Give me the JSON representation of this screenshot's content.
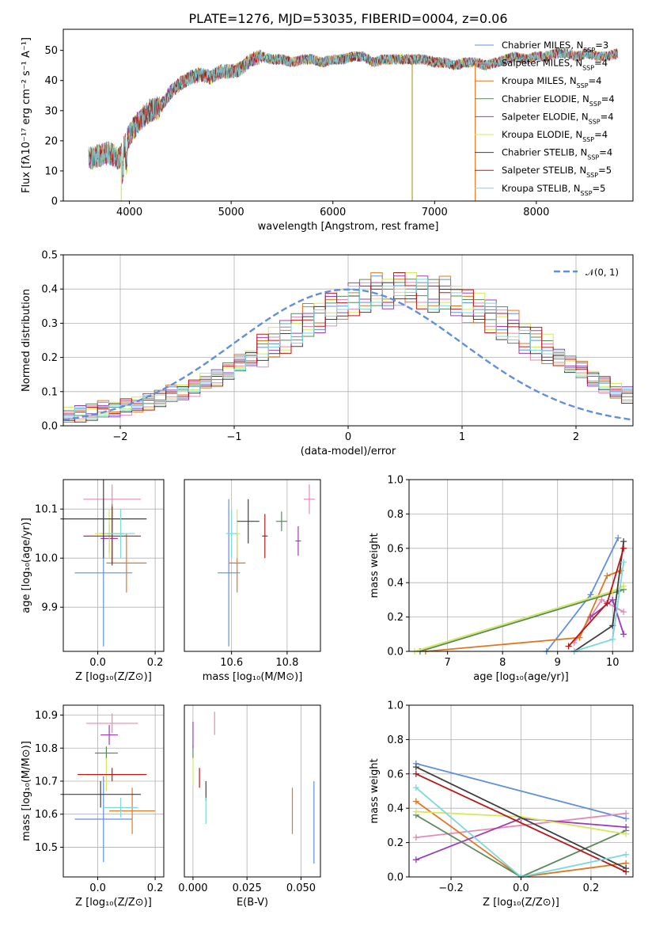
{
  "title": "PLATE=1276, MJD=53035, FIBERID=0004, z=0.06",
  "colors": [
    "#5f8fde",
    "#e48ab5",
    "#e0771f",
    "#5a8a5a",
    "#9c3cb8",
    "#d3e85c",
    "#404040",
    "#b81818",
    "#7ad8de"
  ],
  "chart_data": [
    {
      "id": "spectrum",
      "type": "line",
      "xlabel": "wavelength [Angstrom, rest frame]",
      "ylabel": "Flux [fλ10⁻¹⁷ erg cm⁻² s⁻¹ A⁻¹]",
      "xlim": [
        3350,
        8950
      ],
      "ylim": [
        0,
        57
      ],
      "xticks": [
        4000,
        5000,
        6000,
        7000,
        8000
      ],
      "yticks": [
        0,
        10,
        20,
        30,
        40,
        50
      ],
      "continuum": {
        "x": [
          3600,
          3700,
          3800,
          3900,
          4000,
          4100,
          4200,
          4300,
          4400,
          4500,
          4600,
          4700,
          4800,
          4900,
          5000,
          5100,
          5200,
          5300,
          5400,
          5500,
          5600,
          5700,
          5800,
          5900,
          6000,
          6100,
          6200,
          6300,
          6400,
          6500,
          6600,
          6700,
          6800,
          6900,
          7000,
          7100,
          7200,
          7300,
          7400,
          7500,
          7600,
          7700,
          7800,
          7900,
          8000,
          8100,
          8200,
          8300,
          8400,
          8500,
          8600,
          8700,
          8800
        ],
        "y": [
          14,
          15,
          16,
          14,
          22,
          27,
          30,
          31,
          36,
          39,
          41,
          42,
          41,
          43,
          43,
          44,
          47,
          48,
          47,
          47,
          46,
          47,
          47,
          46,
          47,
          47,
          48,
          48,
          46,
          47,
          47,
          47,
          47,
          47,
          46,
          46,
          45,
          46,
          46,
          45,
          46,
          47,
          48,
          47,
          48,
          48,
          49,
          49,
          48,
          49,
          48,
          48,
          49
        ]
      },
      "models": [
        "Chabrier MILES, N_SSP=3",
        "Salpeter MILES, N_SSP=4",
        "Kroupa MILES, N_SSP=4",
        "Chabrier ELODIE, N_SSP=4",
        "Salpeter ELODIE, N_SSP=4",
        "Kroupa ELODIE, N_SSP=4",
        "Chabrier STELIB, N_SSP=4",
        "Salpeter STELIB, N_SSP=5",
        "Kroupa STELIB, N_SSP=5"
      ]
    },
    {
      "id": "residuals",
      "type": "histogram",
      "xlabel": "(data-model)/error",
      "ylabel": "Normed distribution",
      "xlim": [
        -2.5,
        2.5
      ],
      "ylim": [
        0,
        0.5
      ],
      "xticks": [
        -2,
        -1,
        0,
        1,
        2
      ],
      "yticks": [
        0.0,
        0.1,
        0.2,
        0.3,
        0.4,
        0.5
      ],
      "bin_width": 0.1,
      "normal_label": "𝒩(0, 1)",
      "profile": [
        0.03,
        0.035,
        0.04,
        0.045,
        0.05,
        0.055,
        0.06,
        0.07,
        0.08,
        0.09,
        0.1,
        0.11,
        0.13,
        0.14,
        0.16,
        0.18,
        0.2,
        0.22,
        0.24,
        0.26,
        0.28,
        0.3,
        0.32,
        0.34,
        0.35,
        0.37,
        0.38,
        0.39,
        0.39,
        0.4,
        0.4,
        0.39,
        0.38,
        0.38,
        0.37,
        0.35,
        0.34,
        0.32,
        0.3,
        0.28,
        0.26,
        0.24,
        0.22,
        0.2,
        0.18,
        0.16,
        0.14,
        0.12,
        0.1,
        0.09
      ]
    },
    {
      "id": "age_vs_Z",
      "type": "errorbar",
      "xlabel": "Z [log₁₀(Z/Z⊙)]",
      "ylabel": "age  [log₁₀(age/yr)]",
      "xlim": [
        -0.12,
        0.23
      ],
      "ylim": [
        9.81,
        10.16
      ],
      "xticks": [
        0.0,
        0.2
      ],
      "yticks": [
        9.9,
        10.0,
        10.1
      ],
      "points": [
        {
          "x": 0.02,
          "y": 9.97,
          "xerr": 0.1,
          "yerr": 0.15
        },
        {
          "x": 0.05,
          "y": 10.12,
          "xerr": 0.1,
          "yerr": 0.03
        },
        {
          "x": 0.1,
          "y": 9.99,
          "xerr": 0.07,
          "yerr": 0.06
        },
        {
          "x": 0.05,
          "y": 10.05,
          "xerr": 0.04,
          "yerr": 0.06
        },
        {
          "x": 0.04,
          "y": 10.04,
          "xerr": 0.03,
          "yerr": 0.03
        },
        {
          "x": 0.04,
          "y": 10.05,
          "xerr": 0.05,
          "yerr": 0.05
        },
        {
          "x": 0.02,
          "y": 10.08,
          "xerr": 0.15,
          "yerr": 0.08
        },
        {
          "x": 0.05,
          "y": 10.045,
          "xerr": 0.1,
          "yerr": 0.06
        },
        {
          "x": 0.08,
          "y": 10.05,
          "xerr": 0.05,
          "yerr": 0.05
        }
      ]
    },
    {
      "id": "age_vs_mass",
      "type": "errorbar",
      "xlabel": "mass [log₁₀(M/M⊙)]",
      "xlim": [
        10.43,
        10.92
      ],
      "ylim": [
        9.81,
        10.16
      ],
      "xticks": [
        10.6,
        10.8
      ],
      "points": [
        {
          "x": 10.59,
          "y": 9.97,
          "xerr": 0.04,
          "yerr": 0.15
        },
        {
          "x": 10.88,
          "y": 10.12,
          "xerr": 0.02,
          "yerr": 0.03
        },
        {
          "x": 10.62,
          "y": 9.99,
          "xerr": 0.03,
          "yerr": 0.06
        },
        {
          "x": 10.78,
          "y": 10.075,
          "xerr": 0.02,
          "yerr": 0.02
        },
        {
          "x": 10.84,
          "y": 10.035,
          "xerr": 0.01,
          "yerr": 0.03
        },
        {
          "x": 10.62,
          "y": 10.05,
          "xerr": 0.01,
          "yerr": 0.05
        },
        {
          "x": 10.66,
          "y": 10.075,
          "xerr": 0.04,
          "yerr": 0.045
        },
        {
          "x": 10.72,
          "y": 10.045,
          "xerr": 0.01,
          "yerr": 0.045
        },
        {
          "x": 10.6,
          "y": 10.05,
          "xerr": 0.02,
          "yerr": 0.05
        }
      ]
    },
    {
      "id": "mass_weight_vs_age",
      "type": "line",
      "xlabel": "age  [log₁₀(age/yr)]",
      "ylabel": "mass weight",
      "xlim": [
        6.3,
        10.37
      ],
      "ylim": [
        0,
        1.0
      ],
      "xticks": [
        7,
        8,
        9,
        10
      ],
      "yticks": [
        0.0,
        0.2,
        0.4,
        0.6,
        0.8,
        1.0
      ],
      "series": [
        {
          "x": [
            8.8,
            9.6,
            10.1
          ],
          "y": [
            0.0,
            0.33,
            0.66
          ]
        },
        {
          "x": [
            9.3,
            9.8,
            10.2
          ],
          "y": [
            0.05,
            0.3,
            0.23
          ]
        },
        {
          "x": [
            6.6,
            9.4,
            9.9,
            10.15
          ],
          "y": [
            0.0,
            0.08,
            0.44,
            0.47
          ]
        },
        {
          "x": [
            6.5,
            10.1,
            10.2
          ],
          "y": [
            0.0,
            0.35,
            0.36
          ]
        },
        {
          "x": [
            9.6,
            10.0,
            10.2
          ],
          "y": [
            0.2,
            0.3,
            0.1
          ]
        },
        {
          "x": [
            6.4,
            10.0,
            10.2
          ],
          "y": [
            0.0,
            0.35,
            0.38
          ]
        },
        {
          "x": [
            9.3,
            10.0,
            10.2
          ],
          "y": [
            0.0,
            0.15,
            0.64
          ]
        },
        {
          "x": [
            9.2,
            9.9,
            10.2
          ],
          "y": [
            0.03,
            0.28,
            0.6
          ]
        },
        {
          "x": [
            9.3,
            10.0,
            10.2
          ],
          "y": [
            0.0,
            0.07,
            0.52
          ]
        }
      ]
    },
    {
      "id": "mass_vs_Z",
      "type": "errorbar",
      "xlabel": "Z [log₁₀(Z/Z⊙)]",
      "ylabel": "mass [log₁₀(M/M⊙)]",
      "xlim": [
        -0.12,
        0.23
      ],
      "ylim": [
        10.41,
        10.93
      ],
      "xticks": [
        0.0,
        0.2
      ],
      "yticks": [
        10.5,
        10.6,
        10.7,
        10.8,
        10.9
      ],
      "points": [
        {
          "x": 0.02,
          "y": 10.585,
          "xerr": 0.1,
          "yerr": 0.13
        },
        {
          "x": 0.05,
          "y": 10.875,
          "xerr": 0.09,
          "yerr": 0.03
        },
        {
          "x": 0.12,
          "y": 10.61,
          "xerr": 0.08,
          "yerr": 0.07
        },
        {
          "x": 0.03,
          "y": 10.785,
          "xerr": 0.04,
          "yerr": 0.02
        },
        {
          "x": 0.04,
          "y": 10.84,
          "xerr": 0.03,
          "yerr": 0.03
        },
        {
          "x": 0.03,
          "y": 10.72,
          "xerr": 0.05,
          "yerr": 0.05
        },
        {
          "x": 0.01,
          "y": 10.66,
          "xerr": 0.14,
          "yerr": 0.04
        },
        {
          "x": 0.05,
          "y": 10.72,
          "xerr": 0.12,
          "yerr": 0.02
        },
        {
          "x": 0.08,
          "y": 10.62,
          "xerr": 0.06,
          "yerr": 0.03
        }
      ]
    },
    {
      "id": "mass_vs_ebv",
      "type": "errorbar",
      "xlabel": "E(B-V)",
      "xlim": [
        -0.004,
        0.059
      ],
      "ylim": [
        10.41,
        10.93
      ],
      "xticks": [
        0.0,
        0.025,
        0.05
      ],
      "points": [
        {
          "x": 0.056,
          "y": 10.575,
          "yerr": 0.125
        },
        {
          "x": 0.01,
          "y": 10.875,
          "yerr": 0.035
        },
        {
          "x": 0.046,
          "y": 10.61,
          "yerr": 0.07
        },
        {
          "x": 0.0,
          "y": 10.79,
          "yerr": 0.02
        },
        {
          "x": 0.0,
          "y": 10.84,
          "yerr": 0.04
        },
        {
          "x": 0.0,
          "y": 10.73,
          "yerr": 0.04
        },
        {
          "x": 0.006,
          "y": 10.67,
          "yerr": 0.03
        },
        {
          "x": 0.003,
          "y": 10.71,
          "yerr": 0.03
        },
        {
          "x": 0.006,
          "y": 10.61,
          "yerr": 0.04
        }
      ]
    },
    {
      "id": "mass_weight_vs_Z",
      "type": "line",
      "xlabel": "Z [log₁₀(Z/Z⊙)]",
      "ylabel": "mass weight",
      "xlim": [
        -0.32,
        0.32
      ],
      "ylim": [
        0,
        1.0
      ],
      "xticks": [
        -0.2,
        0.0,
        0.2
      ],
      "yticks": [
        0.0,
        0.2,
        0.4,
        0.6,
        0.8,
        1.0
      ],
      "series": [
        {
          "x": [
            -0.3,
            0.3
          ],
          "y": [
            0.66,
            0.34
          ]
        },
        {
          "x": [
            -0.3,
            0.3
          ],
          "y": [
            0.23,
            0.37
          ]
        },
        {
          "x": [
            -0.3,
            0.0,
            0.3
          ],
          "y": [
            0.44,
            0.0,
            0.08
          ]
        },
        {
          "x": [
            -0.3,
            0.0,
            0.3
          ],
          "y": [
            0.36,
            0.0,
            0.27
          ]
        },
        {
          "x": [
            -0.3,
            0.0,
            0.3
          ],
          "y": [
            0.1,
            0.34,
            0.29
          ]
        },
        {
          "x": [
            -0.3,
            0.0,
            0.3
          ],
          "y": [
            0.38,
            0.35,
            0.25
          ]
        },
        {
          "x": [
            -0.3,
            0.3
          ],
          "y": [
            0.64,
            0.05
          ]
        },
        {
          "x": [
            -0.3,
            0.3
          ],
          "y": [
            0.6,
            0.03
          ]
        },
        {
          "x": [
            -0.3,
            0.0,
            0.3
          ],
          "y": [
            0.52,
            0.0,
            0.13
          ]
        }
      ]
    }
  ]
}
